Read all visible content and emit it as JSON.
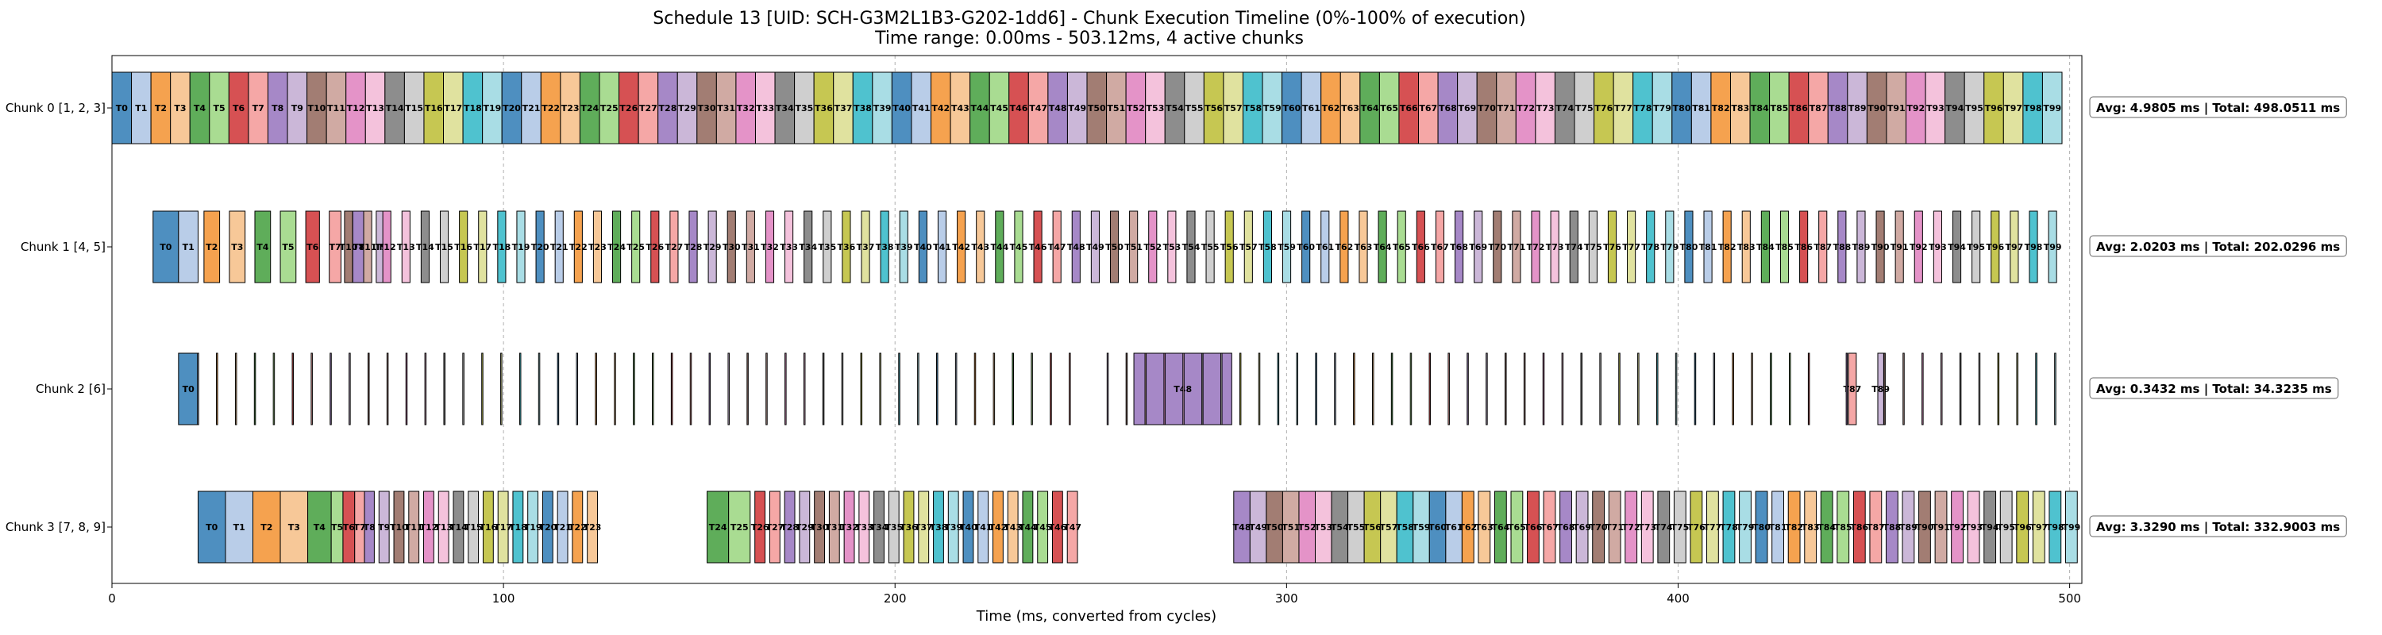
{
  "chart_data": {
    "type": "gantt",
    "title_line1": "Schedule 13 [UID: SCH-G3M2L1B3-G202-1dd6] - Chunk Execution Timeline (0%-100% of execution)",
    "title_line2": "Time range: 0.00ms - 503.12ms, 4 active chunks",
    "xlabel": "Time (ms, converted from cycles)",
    "xlim": [
      0,
      503.12
    ],
    "xticks": [
      0,
      100,
      200,
      300,
      400,
      500
    ],
    "grid": "vertical-dashed",
    "palette": [
      "#4e8fc0",
      "#b9cde8",
      "#f5a24f",
      "#f7c898",
      "#5fad5a",
      "#a9dc92",
      "#d65153",
      "#f5a7a6",
      "#a688c7",
      "#cbb7d8",
      "#a27d73",
      "#d0aaa3",
      "#e493c8",
      "#f4c2dc",
      "#8d8d8d",
      "#cfcfcf",
      "#c6c752",
      "#e0e29f",
      "#4fc2cf",
      "#a9dde5"
    ],
    "chunks": [
      {
        "label": "Chunk 0 [1, 2, 3]",
        "annotation": "Avg: 4.9805 ms | Total: 498.0511 ms",
        "tasks_count": 100,
        "start": 0,
        "end": 498.05,
        "explicit_tasks": [],
        "hidden_labels": []
      },
      {
        "label": "Chunk 1 [4, 5]",
        "annotation": "Avg: 2.0203 ms | Total: 202.0296 ms",
        "tasks_count": 100,
        "start": 10.5,
        "end": 499.5,
        "explicit_tasks": [
          {
            "i": 0,
            "start": 10.5,
            "end": 17.0
          },
          {
            "i": 1,
            "start": 17.0,
            "end": 22.0
          },
          {
            "i": 2,
            "start": 23.5,
            "end": 27.5
          },
          {
            "i": 3,
            "start": 30.0,
            "end": 34.0
          },
          {
            "i": 4,
            "start": 36.5,
            "end": 40.5
          },
          {
            "i": 5,
            "start": 43.0,
            "end": 47.0
          },
          {
            "i": 6,
            "start": 49.5,
            "end": 53.0
          },
          {
            "i": 7,
            "start": 55.5,
            "end": 58.5
          },
          {
            "i": 8,
            "start": 61.5,
            "end": 64.5
          },
          {
            "i": 9,
            "start": 67.5,
            "end": 70.0
          }
        ],
        "hidden_labels": []
      },
      {
        "label": "Chunk 2 [6]",
        "annotation": "Avg: 0.3432 ms | Total: 34.3235 ms",
        "tasks_count": 100,
        "start": 17.0,
        "end": 501.0,
        "explicit_tasks": [
          {
            "i": 0,
            "start": 17.0,
            "end": 22.0
          },
          {
            "i": 48,
            "start": 261.0,
            "end": 286.0
          },
          {
            "i": 87,
            "start": 443.5,
            "end": 445.5
          },
          {
            "i": 89,
            "start": 451.0,
            "end": 452.5
          }
        ],
        "labeled_tasks": [
          0,
          48,
          87,
          89
        ]
      },
      {
        "label": "Chunk 3 [7, 8, 9]",
        "annotation": "Avg: 3.3290 ms | Total: 332.9003 ms",
        "tasks_count": 100,
        "start": 22.0,
        "end": 503.12,
        "gap_after_task": 47,
        "gap_resume": 286.5,
        "explicit_tasks": [
          {
            "i": 0,
            "start": 22.0,
            "end": 29.0
          },
          {
            "i": 1,
            "start": 29.0,
            "end": 36.0
          },
          {
            "i": 2,
            "start": 36.0,
            "end": 43.0
          },
          {
            "i": 3,
            "start": 43.0,
            "end": 50.0
          },
          {
            "i": 4,
            "start": 50.0,
            "end": 56.0
          },
          {
            "i": 5,
            "start": 56.0,
            "end": 59.0
          },
          {
            "i": 6,
            "start": 59.0,
            "end": 62.0
          },
          {
            "i": 7,
            "start": 62.0,
            "end": 64.5
          },
          {
            "i": 8,
            "start": 64.5,
            "end": 67.0
          },
          {
            "i": 24,
            "start": 152.0,
            "end": 157.5
          },
          {
            "i": 25,
            "start": 157.5,
            "end": 163.0
          }
        ],
        "hidden_labels": []
      }
    ]
  }
}
